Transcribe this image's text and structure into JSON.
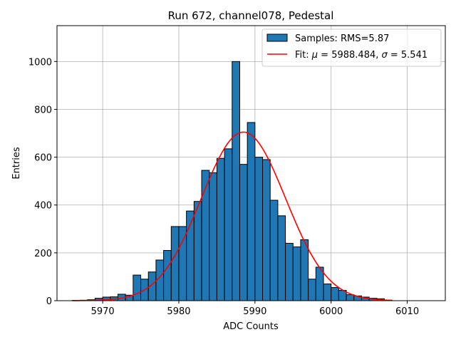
{
  "chart_data": {
    "type": "bar",
    "title": "Run 672, channel078, Pedestal",
    "xlabel": "ADC Counts",
    "ylabel": "Entries",
    "xlim": [
      5964,
      6015
    ],
    "ylim": [
      0,
      1150
    ],
    "x_ticks": [
      "5970",
      "5980",
      "5990",
      "6000",
      "6010"
    ],
    "y_ticks": [
      "0",
      "200",
      "400",
      "600",
      "800",
      "1000"
    ],
    "grid": true,
    "legend_position": "top-right",
    "histogram": {
      "name": "Samples: RMS=5.87",
      "color": "#1f77b4",
      "bin_edges": [
        5966,
        5967,
        5968,
        5969,
        5970,
        5971,
        5972,
        5973,
        5974,
        5975,
        5976,
        5977,
        5978,
        5979,
        5980,
        5981,
        5982,
        5983,
        5984,
        5985,
        5986,
        5987,
        5988,
        5989,
        5990,
        5991,
        5992,
        5993,
        5994,
        5995,
        5996,
        5997,
        5998,
        5999,
        6000,
        6001,
        6002,
        6003,
        6004,
        6005,
        6006,
        6007,
        6008
      ],
      "counts": [
        1,
        2,
        4,
        10,
        15,
        16,
        27,
        23,
        107,
        90,
        120,
        170,
        210,
        310,
        310,
        375,
        415,
        545,
        535,
        595,
        635,
        1000,
        570,
        745,
        600,
        590,
        420,
        355,
        240,
        225,
        255,
        90,
        140,
        70,
        55,
        43,
        25,
        20,
        15,
        10,
        8,
        2
      ]
    },
    "fit": {
      "name": "Fit: μ = 5988.484, σ = 5.541",
      "color": "#ff0000",
      "mu": 5988.484,
      "sigma": 5.541,
      "amplitude": 705,
      "x_range": [
        5966,
        6008
      ]
    }
  },
  "legend": {
    "samples_label": "Samples: RMS=5.87",
    "fit_prefix": "Fit: ",
    "fit_mu_symbol": "μ",
    "fit_mu_value": " = 5988.484, ",
    "fit_sigma_symbol": "σ",
    "fit_sigma_value": " = 5.541"
  }
}
